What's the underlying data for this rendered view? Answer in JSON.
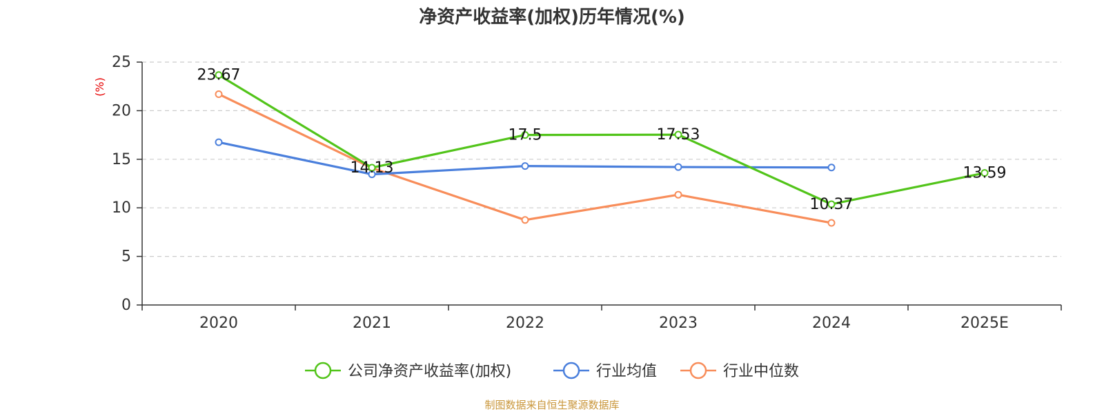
{
  "title": "净资产收益率(加权)历年情况(%)",
  "source": "制图数据来自恒生聚源数据库",
  "chart_data": {
    "type": "line",
    "title": "净资产收益率(加权)历年情况(%)",
    "ylabel": "(%)",
    "xlabel": "",
    "categories": [
      "2020",
      "2021",
      "2022",
      "2023",
      "2024",
      "2025E"
    ],
    "ylim": [
      0,
      25
    ],
    "yticks": [
      0,
      5,
      10,
      15,
      20,
      25
    ],
    "grid": true,
    "legend_position": "bottom",
    "series": [
      {
        "name": "公司净资产收益率(加权)",
        "color": "#52c41a",
        "values": [
          23.67,
          14.13,
          17.5,
          17.53,
          10.37,
          13.59
        ],
        "labels": [
          "23.67",
          "14.13",
          "17.5",
          "17.53",
          "10.37",
          "13.59"
        ]
      },
      {
        "name": "行业均值",
        "color": "#4a7fdc",
        "values": [
          16.75,
          13.45,
          14.3,
          14.2,
          14.15,
          null
        ]
      },
      {
        "name": "行业中位数",
        "color": "#f88d5a",
        "values": [
          21.7,
          14.1,
          8.75,
          11.35,
          8.45,
          null
        ]
      }
    ]
  }
}
